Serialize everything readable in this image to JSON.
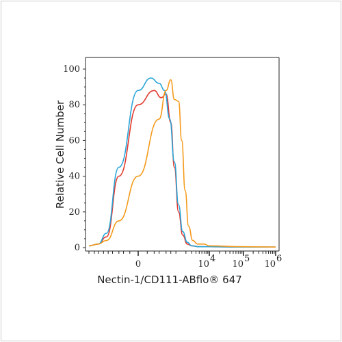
{
  "chart_data": {
    "type": "line",
    "title": "",
    "xlabel": "Nectin-1/CD111-ABflo® 647",
    "ylabel": "Relative Cell Number",
    "ylim": [
      0,
      100
    ],
    "xscale": "biexponential",
    "x_tick_labels": [
      {
        "label": "0",
        "value": 0
      },
      {
        "label": "10",
        "sup": "4",
        "value": 10000
      },
      {
        "label": "10",
        "sup": "5",
        "value": 100000
      },
      {
        "label": "10",
        "sup": "6",
        "value": 1000000
      }
    ],
    "y_tick_labels": [
      "0",
      "20",
      "40",
      "60",
      "80",
      "100"
    ],
    "grid": false,
    "legend": "none",
    "series": [
      {
        "color": "#e23a2e",
        "x": [
          -3000,
          -1500,
          -800,
          -300,
          0,
          200,
          350,
          500,
          700,
          900,
          1200,
          1600,
          2200,
          3000,
          5000,
          10000,
          100000,
          1000000
        ],
        "y": [
          1,
          2,
          6,
          40,
          80,
          88,
          84,
          86,
          70,
          45,
          20,
          7,
          2,
          1,
          0.5,
          0.5,
          0.3,
          0.3
        ]
      },
      {
        "color": "#2aa5d8",
        "x": [
          -3000,
          -1500,
          -800,
          -300,
          0,
          150,
          300,
          450,
          650,
          900,
          1200,
          1600,
          2200,
          3000,
          5000,
          10000,
          100000,
          1000000
        ],
        "y": [
          1,
          2,
          8,
          45,
          88,
          95,
          92,
          88,
          72,
          48,
          24,
          9,
          3,
          1,
          0.5,
          0.5,
          0.3,
          0.3
        ]
      },
      {
        "color": "#f59a1b",
        "x": [
          -3000,
          -1500,
          -800,
          -300,
          0,
          300,
          500,
          700,
          900,
          1200,
          1500,
          1900,
          2400,
          3200,
          4500,
          7000,
          10000,
          100000,
          1000000
        ],
        "y": [
          1,
          2,
          4,
          15,
          40,
          72,
          88,
          94,
          83,
          82,
          60,
          32,
          12,
          4,
          2,
          2,
          1,
          0.5,
          0.3
        ]
      }
    ]
  }
}
